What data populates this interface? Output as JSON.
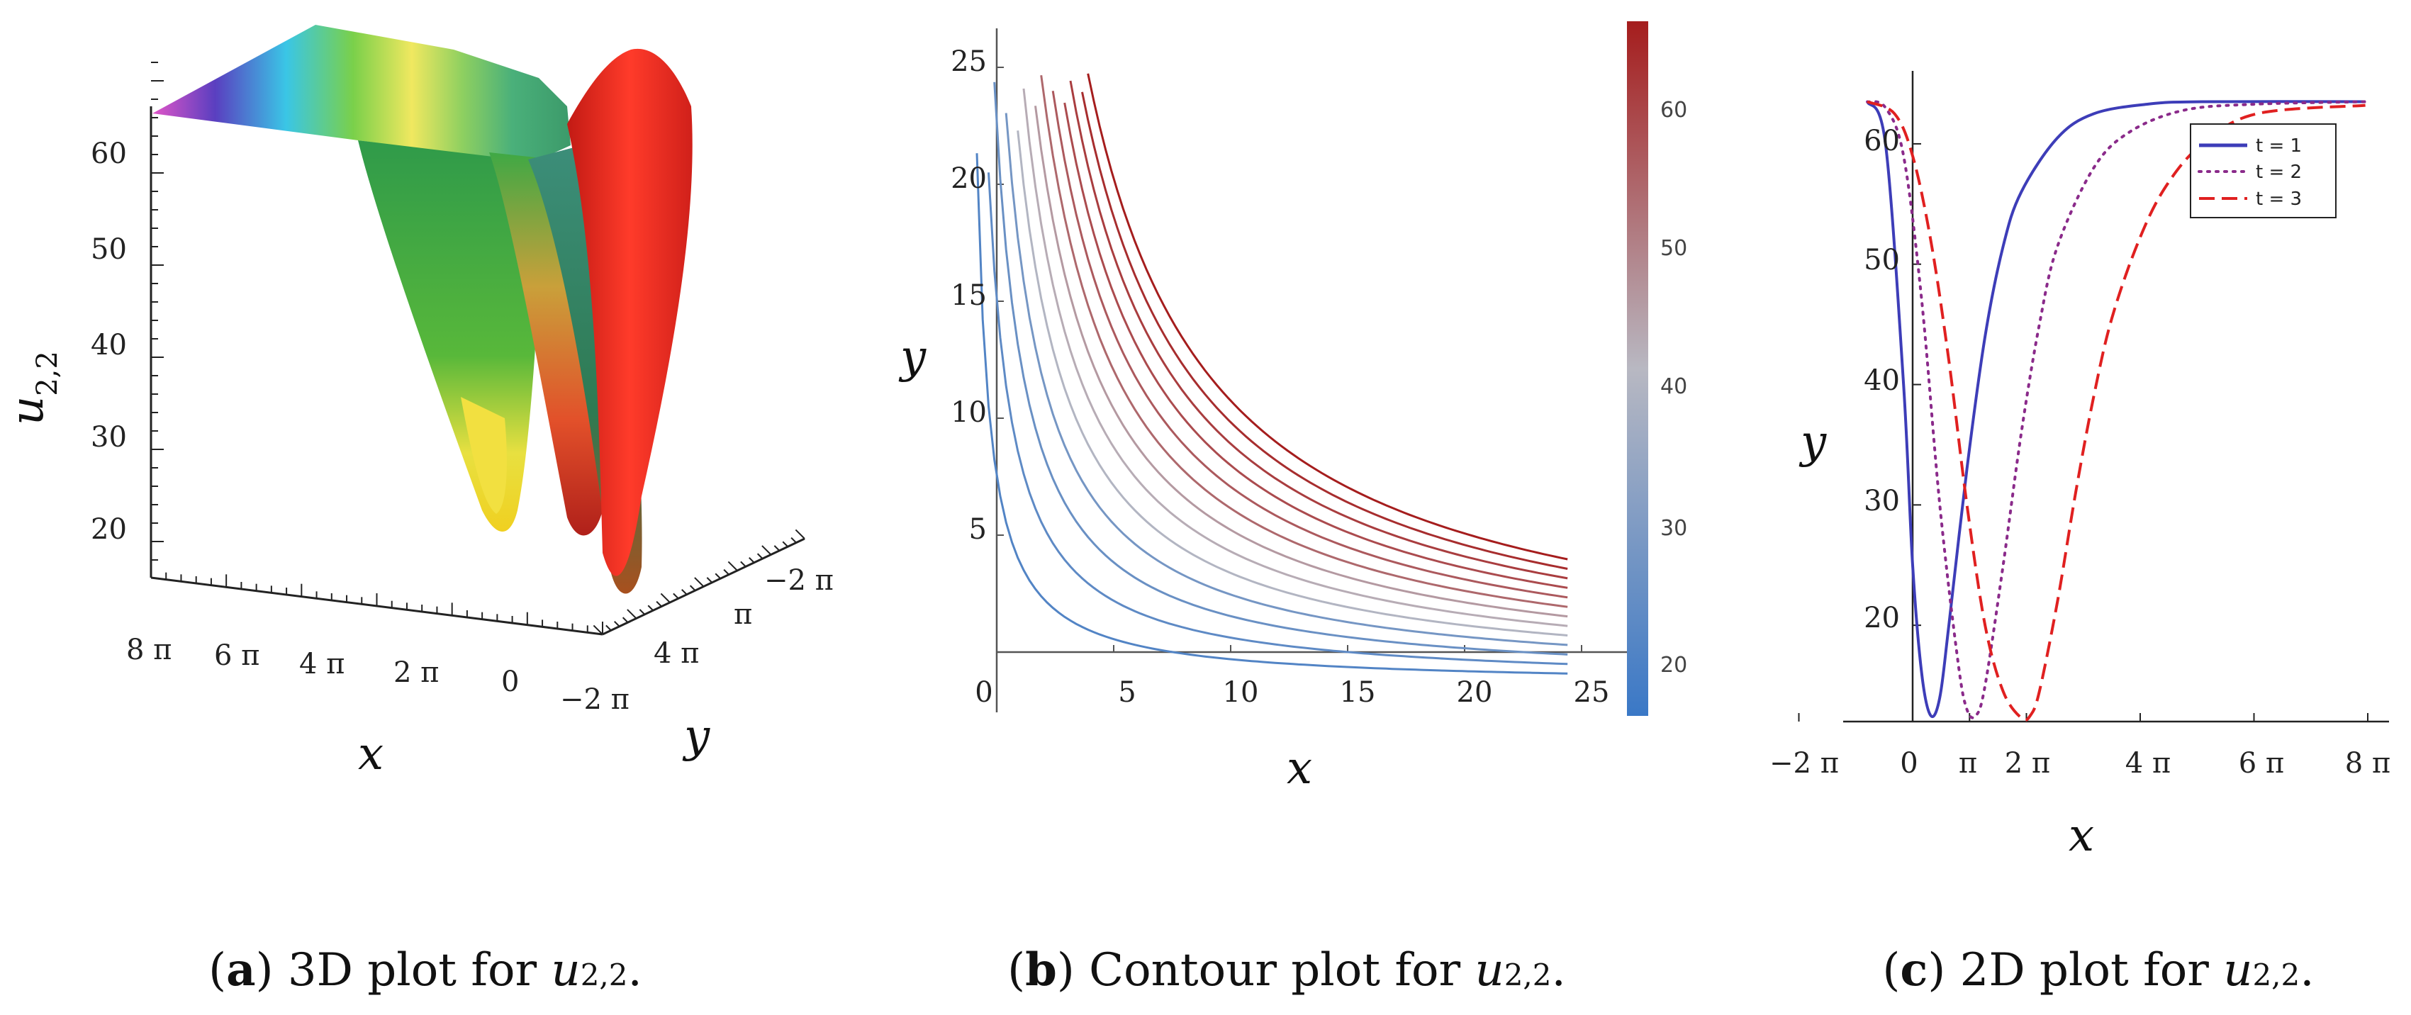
{
  "chart_data": [
    {
      "type": "surface3d",
      "panel": "a",
      "zlabel": "u",
      "zlabel_sub": "2,2",
      "xlabel": "x",
      "ylabel": "y",
      "z_ticks": [
        "20",
        "30",
        "40",
        "50",
        "60"
      ],
      "x_ticks": [
        "8 π",
        "6 π",
        "4 π",
        "2 π",
        "0",
        "−2 π"
      ],
      "y_ticks": [
        "−2 π",
        "π",
        "4 π"
      ],
      "zlim": [
        12,
        64
      ],
      "grid": false
    },
    {
      "type": "contour",
      "panel": "b",
      "xlabel": "x",
      "ylabel": "y",
      "x_ticks": [
        "0",
        "5",
        "10",
        "15",
        "20",
        "25"
      ],
      "y_ticks": [
        "5",
        "10",
        "15",
        "20",
        "25"
      ],
      "xlim": [
        -2,
        25
      ],
      "ylim": [
        -2,
        25
      ],
      "colorbar_ticks": [
        "20",
        "30",
        "40",
        "50",
        "60"
      ],
      "colorbar_range": [
        13,
        64
      ],
      "colorbar_colors": [
        "#3a78c6",
        "#b8b8c2",
        "#a51d1d"
      ],
      "level_count": 14
    },
    {
      "type": "line",
      "panel": "c",
      "xlabel": "x",
      "ylabel": "y",
      "x_ticks": [
        "−2 π",
        "0",
        "π",
        "2 π",
        "4 π",
        "6 π",
        "8 π"
      ],
      "y_ticks": [
        "20",
        "30",
        "40",
        "50",
        "60"
      ],
      "xlim": [
        -6.2832,
        25.1327
      ],
      "ylim": [
        12,
        64
      ],
      "legend": "top-right",
      "series": [
        {
          "name": "t = 1",
          "color": "#3d3db8",
          "dash": "solid",
          "x": [
            -2.5,
            -1.5,
            -0.5,
            0.0,
            0.5,
            1.0,
            1.5,
            2.0,
            3.0,
            4.0,
            5.0,
            6.0,
            8.0,
            10.0,
            13.0,
            16.0,
            25.0
          ],
          "y": [
            63.5,
            60.0,
            40.0,
            25.0,
            16.0,
            12.5,
            14.0,
            20.0,
            33.0,
            44.0,
            51.5,
            56.0,
            60.5,
            62.5,
            63.3,
            63.5,
            63.5
          ]
        },
        {
          "name": "t = 2",
          "color": "#8a2a8a",
          "dash": "dotted",
          "x": [
            -2.5,
            -1.5,
            -0.5,
            0.5,
            1.5,
            2.5,
            3.0,
            3.5,
            4.0,
            5.0,
            6.0,
            7.0,
            8.0,
            10.0,
            12.0,
            15.0,
            19.0,
            25.0
          ],
          "y": [
            63.5,
            63.0,
            59.0,
            47.0,
            30.0,
            17.0,
            13.0,
            12.5,
            15.0,
            25.0,
            36.0,
            45.0,
            51.5,
            58.0,
            61.0,
            62.8,
            63.3,
            63.5
          ]
        },
        {
          "name": "t = 3",
          "color": "#e02020",
          "dash": "dashed",
          "x": [
            -2.5,
            -1.0,
            0.0,
            1.0,
            2.0,
            3.0,
            4.0,
            5.0,
            6.0,
            6.5,
            7.0,
            8.0,
            9.0,
            10.0,
            11.0,
            12.5,
            14.0,
            16.0,
            19.0,
            25.0
          ],
          "y": [
            63.5,
            62.5,
            59.0,
            52.0,
            42.0,
            30.0,
            20.0,
            14.5,
            12.3,
            12.5,
            14.5,
            22.0,
            31.0,
            39.0,
            45.5,
            52.0,
            56.5,
            60.0,
            62.5,
            63.2
          ]
        }
      ]
    }
  ],
  "captions": [
    {
      "letter": "a",
      "text": " 3D plot for ",
      "var": "u",
      "sub": "2,2",
      "end": "."
    },
    {
      "letter": "b",
      "text": " Contour plot for ",
      "var": "u",
      "sub": "2,2",
      "end": "."
    },
    {
      "letter": "c",
      "text": " 2D plot for ",
      "var": "u",
      "sub": "2,2",
      "end": "."
    }
  ]
}
